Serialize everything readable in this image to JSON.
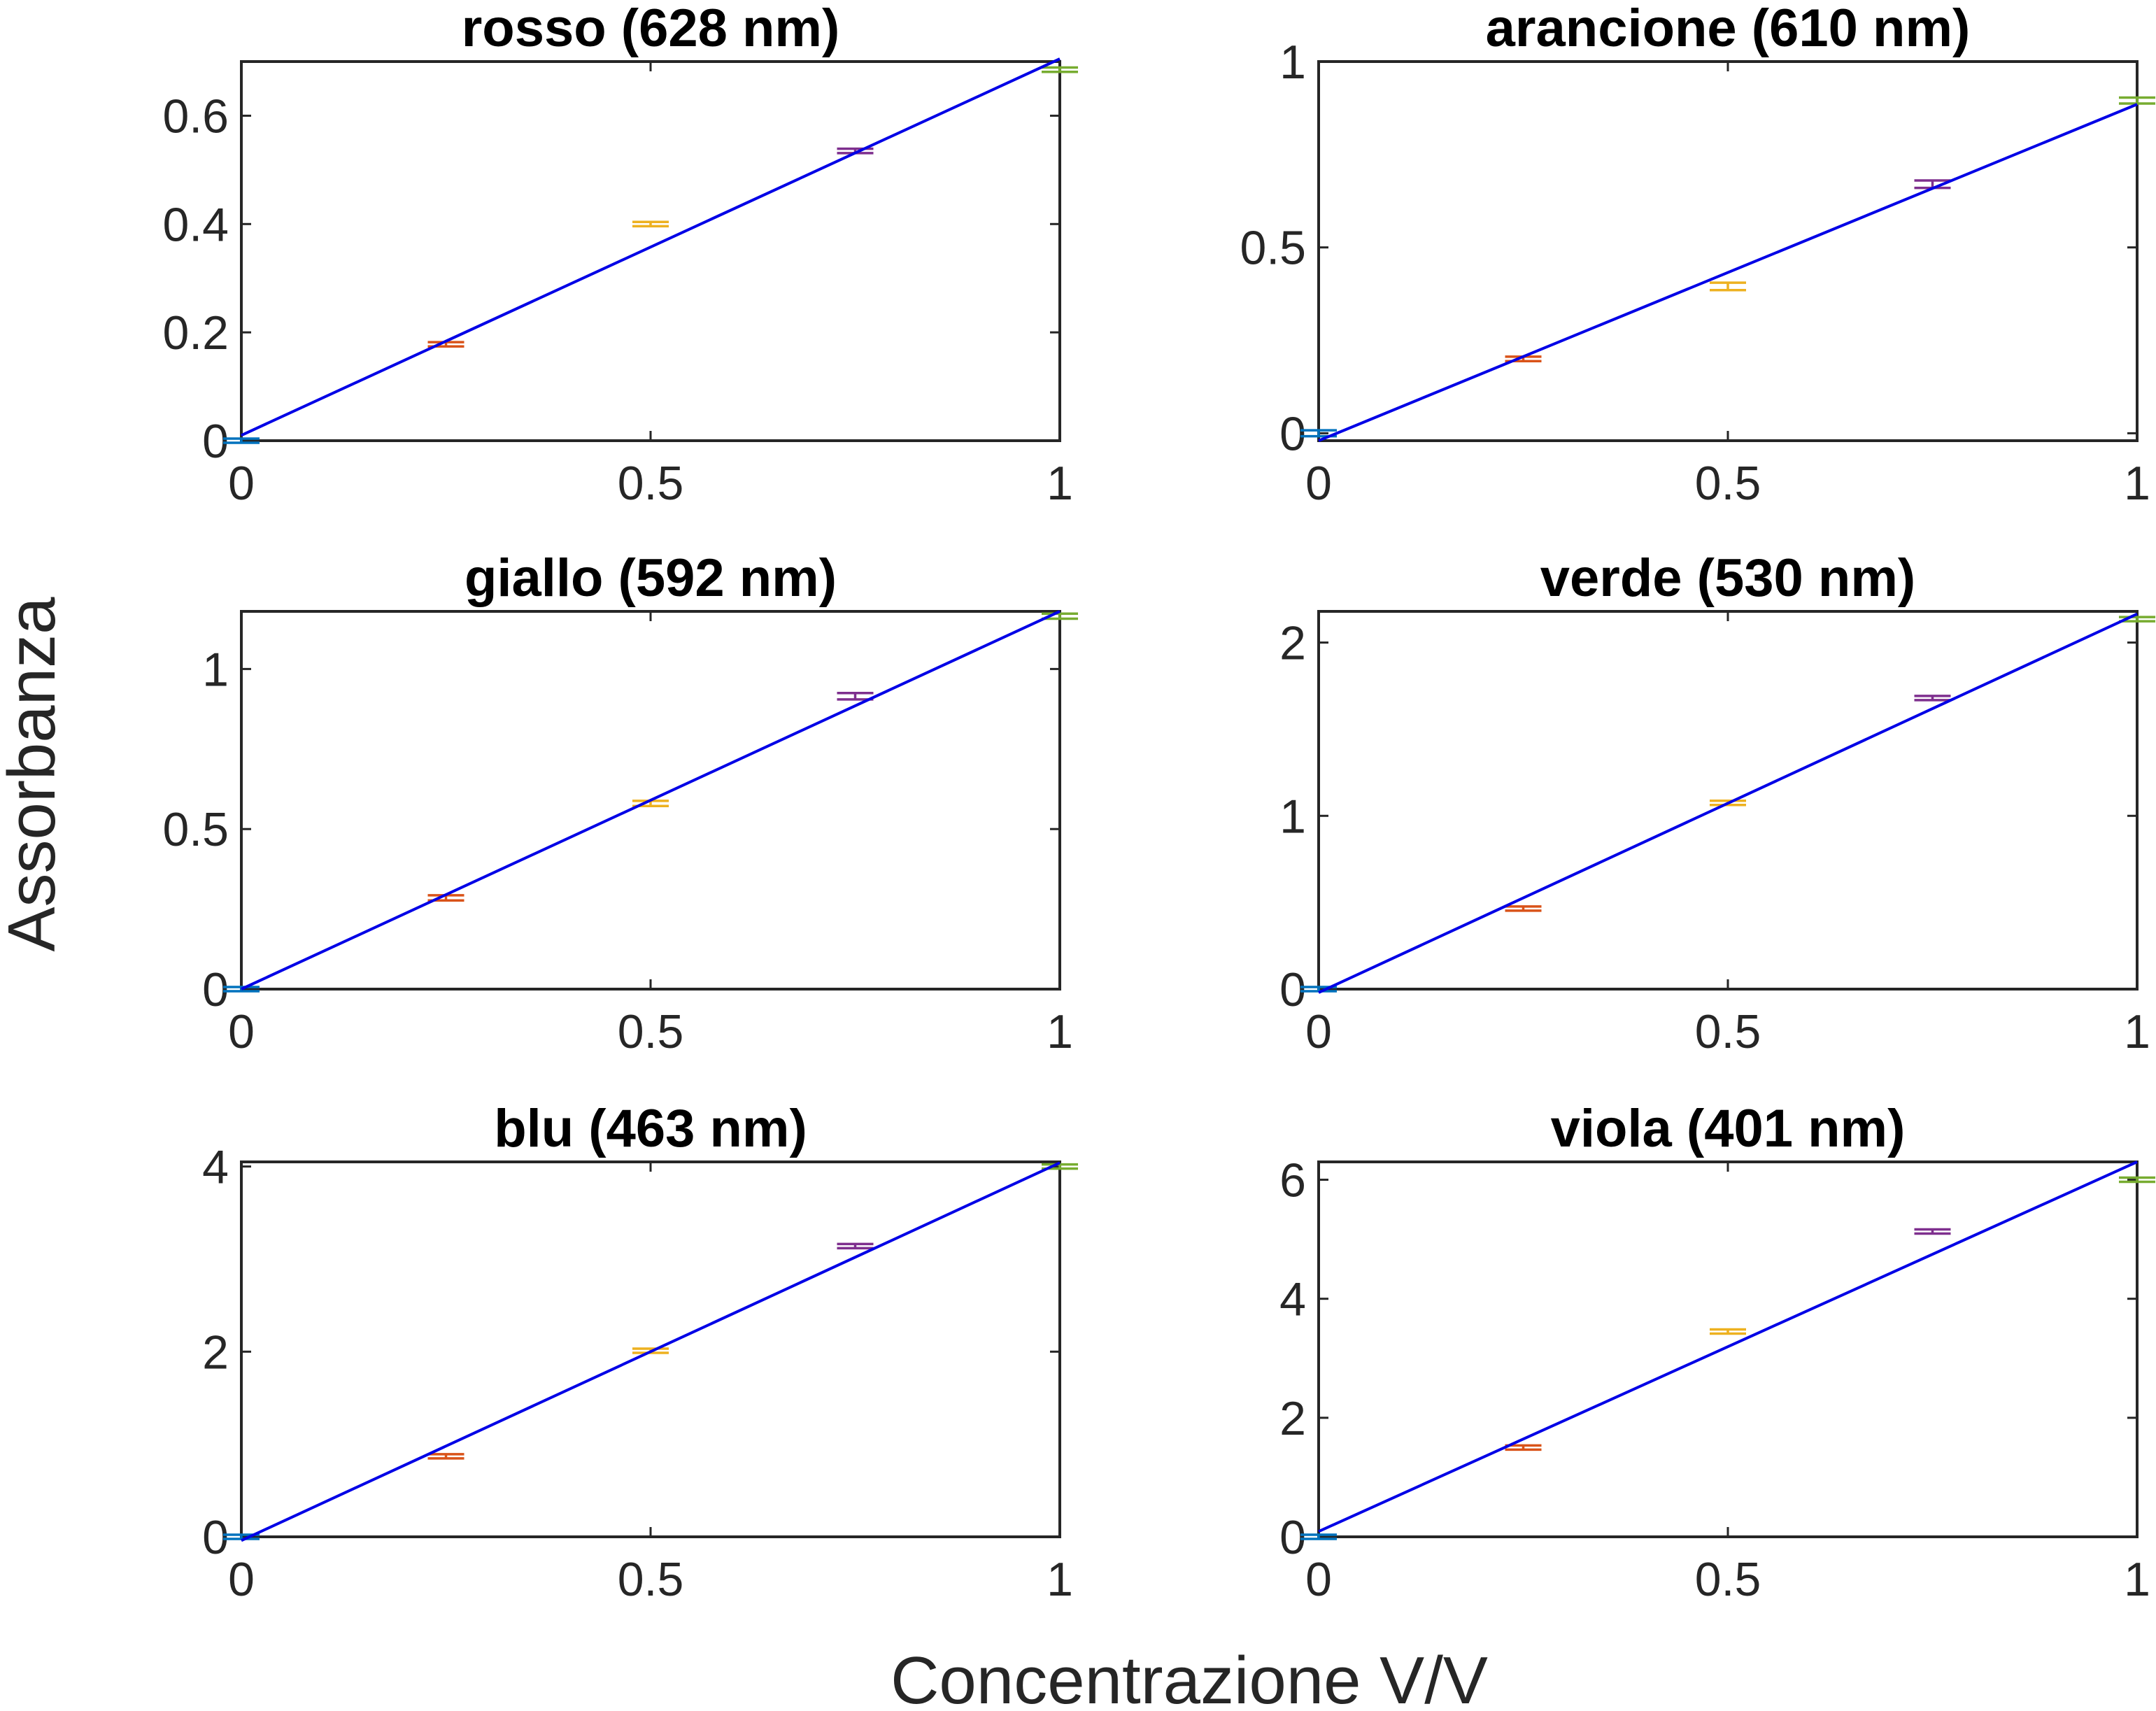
{
  "figure": {
    "xlabel": "Concentrazione V/V",
    "ylabel": "Assorbanza"
  },
  "chart_data": [
    {
      "type": "scatter",
      "title": "rosso (628 nm)",
      "xlim": [
        0,
        1
      ],
      "ylim": [
        0,
        0.7
      ],
      "xticks": [
        "0",
        "0.5",
        "1"
      ],
      "yticks": [
        "0",
        "0.2",
        "0.4",
        "0.6"
      ],
      "ytick_values": [
        0,
        0.2,
        0.4,
        0.6
      ],
      "points": [
        {
          "x": 0.0,
          "y": 0.0,
          "err": 0.003,
          "color": "#0072bd"
        },
        {
          "x": 0.25,
          "y": 0.178,
          "err": 0.004,
          "color": "#d95319"
        },
        {
          "x": 0.5,
          "y": 0.4,
          "err": 0.004,
          "color": "#edb120"
        },
        {
          "x": 0.75,
          "y": 0.535,
          "err": 0.004,
          "color": "#7e2f8e"
        },
        {
          "x": 1.0,
          "y": 0.685,
          "err": 0.004,
          "color": "#77ac30"
        }
      ],
      "fit": {
        "x": [
          0,
          1
        ],
        "y": [
          0.01,
          0.705
        ]
      }
    },
    {
      "type": "scatter",
      "title": "arancione (610 nm)",
      "xlim": [
        0,
        1
      ],
      "ylim": [
        -0.02,
        1.0
      ],
      "xticks": [
        "0",
        "0.5",
        "1"
      ],
      "yticks": [
        "0",
        "0.5",
        "1"
      ],
      "ytick_values": [
        0,
        0.5,
        1
      ],
      "points": [
        {
          "x": 0.0,
          "y": 0.0,
          "err": 0.008,
          "color": "#0072bd"
        },
        {
          "x": 0.25,
          "y": 0.2,
          "err": 0.006,
          "color": "#d95319"
        },
        {
          "x": 0.5,
          "y": 0.395,
          "err": 0.01,
          "color": "#edb120"
        },
        {
          "x": 0.75,
          "y": 0.67,
          "err": 0.01,
          "color": "#7e2f8e"
        },
        {
          "x": 1.0,
          "y": 0.895,
          "err": 0.008,
          "color": "#77ac30"
        }
      ],
      "fit": {
        "x": [
          0,
          1
        ],
        "y": [
          -0.02,
          0.885
        ]
      }
    },
    {
      "type": "scatter",
      "title": "giallo (592 nm)",
      "xlim": [
        0,
        1
      ],
      "ylim": [
        0,
        1.18
      ],
      "xticks": [
        "0",
        "0.5",
        "1"
      ],
      "yticks": [
        "0",
        "0.5",
        "1"
      ],
      "ytick_values": [
        0,
        0.5,
        1
      ],
      "points": [
        {
          "x": 0.0,
          "y": 0.0,
          "err": 0.004,
          "color": "#0072bd"
        },
        {
          "x": 0.25,
          "y": 0.285,
          "err": 0.008,
          "color": "#d95319"
        },
        {
          "x": 0.5,
          "y": 0.58,
          "err": 0.008,
          "color": "#edb120"
        },
        {
          "x": 0.75,
          "y": 0.915,
          "err": 0.01,
          "color": "#7e2f8e"
        },
        {
          "x": 1.0,
          "y": 1.165,
          "err": 0.008,
          "color": "#77ac30"
        }
      ],
      "fit": {
        "x": [
          0,
          1
        ],
        "y": [
          0.0,
          1.18
        ]
      }
    },
    {
      "type": "scatter",
      "title": "verde (530 nm)",
      "xlim": [
        0,
        1
      ],
      "ylim": [
        0,
        2.18
      ],
      "xticks": [
        "0",
        "0.5",
        "1"
      ],
      "yticks": [
        "0",
        "1",
        "2"
      ],
      "ytick_values": [
        0,
        1,
        2
      ],
      "points": [
        {
          "x": 0.0,
          "y": 0.0,
          "err": 0.008,
          "color": "#0072bd"
        },
        {
          "x": 0.25,
          "y": 0.465,
          "err": 0.008,
          "color": "#d95319"
        },
        {
          "x": 0.5,
          "y": 1.075,
          "err": 0.008,
          "color": "#edb120"
        },
        {
          "x": 0.75,
          "y": 1.68,
          "err": 0.01,
          "color": "#7e2f8e"
        },
        {
          "x": 1.0,
          "y": 2.135,
          "err": 0.008,
          "color": "#77ac30"
        }
      ],
      "fit": {
        "x": [
          0,
          1
        ],
        "y": [
          -0.02,
          2.165
        ]
      }
    },
    {
      "type": "scatter",
      "title": "blu (463 nm)",
      "xlim": [
        0,
        1
      ],
      "ylim": [
        0,
        4.05
      ],
      "xticks": [
        "0",
        "0.5",
        "1"
      ],
      "yticks": [
        "0",
        "2",
        "4"
      ],
      "ytick_values": [
        0,
        2,
        4
      ],
      "points": [
        {
          "x": 0.0,
          "y": 0.0,
          "err": 0.004,
          "color": "#0072bd"
        },
        {
          "x": 0.25,
          "y": 0.87,
          "err": 0.004,
          "color": "#d95319"
        },
        {
          "x": 0.5,
          "y": 2.01,
          "err": 0.004,
          "color": "#edb120"
        },
        {
          "x": 0.75,
          "y": 3.14,
          "err": 0.004,
          "color": "#7e2f8e"
        },
        {
          "x": 1.0,
          "y": 4.0,
          "err": 0.004,
          "color": "#77ac30"
        }
      ],
      "fit": {
        "x": [
          0,
          1
        ],
        "y": [
          -0.04,
          4.04
        ]
      }
    },
    {
      "type": "scatter",
      "title": "viola (401 nm)",
      "xlim": [
        0,
        1
      ],
      "ylim": [
        0,
        6.3
      ],
      "xticks": [
        "0",
        "0.5",
        "1"
      ],
      "yticks": [
        "0",
        "2",
        "4",
        "6"
      ],
      "ytick_values": [
        0,
        2,
        4,
        6
      ],
      "points": [
        {
          "x": 0.0,
          "y": 0.0,
          "err": 0.005,
          "color": "#0072bd"
        },
        {
          "x": 0.25,
          "y": 1.5,
          "err": 0.005,
          "color": "#d95319"
        },
        {
          "x": 0.5,
          "y": 3.45,
          "err": 0.005,
          "color": "#edb120"
        },
        {
          "x": 0.75,
          "y": 5.13,
          "err": 0.005,
          "color": "#7e2f8e"
        },
        {
          "x": 1.0,
          "y": 6.0,
          "err": 0.005,
          "color": "#77ac30"
        }
      ],
      "fit": {
        "x": [
          0,
          1
        ],
        "y": [
          0.09,
          6.3
        ]
      }
    }
  ]
}
